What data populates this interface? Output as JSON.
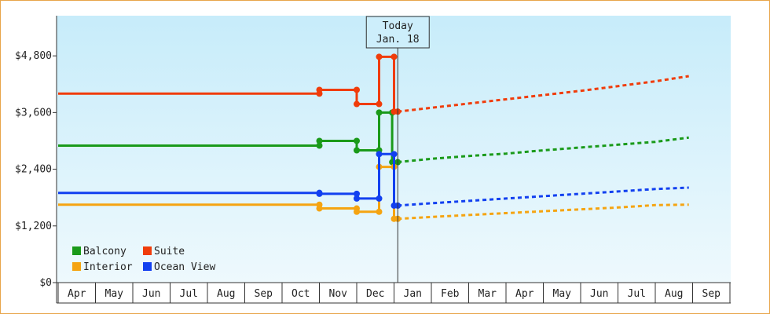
{
  "chart_data": {
    "type": "line",
    "today_label": [
      "Today",
      "Jan. 18"
    ],
    "y_ticks": [
      {
        "value": 0,
        "label": "$0"
      },
      {
        "value": 1200,
        "label": "$1,200"
      },
      {
        "value": 2400,
        "label": "$2,400"
      },
      {
        "value": 3600,
        "label": "$3,600"
      },
      {
        "value": 4800,
        "label": "$4,800"
      }
    ],
    "ylim": [
      0,
      5650
    ],
    "months": [
      "Apr",
      "May",
      "Jun",
      "Jul",
      "Aug",
      "Sep",
      "Oct",
      "Nov",
      "Dec",
      "Jan",
      "Feb",
      "Mar",
      "Apr",
      "May",
      "Jun",
      "Jul",
      "Aug",
      "Sep"
    ],
    "legend_position": "bottom-left",
    "series": [
      {
        "name": "Balcony",
        "color": "#1a9a1a",
        "history": [
          [
            0.0,
            2900
          ],
          [
            7.0,
            2900
          ],
          [
            7.0,
            3000
          ],
          [
            8.0,
            3000
          ],
          [
            8.0,
            2800
          ],
          [
            8.6,
            2800
          ],
          [
            8.6,
            3600
          ],
          [
            8.95,
            3600
          ],
          [
            8.95,
            2550
          ],
          [
            9.1,
            2550
          ]
        ],
        "forecast": [
          [
            9.1,
            2550
          ],
          [
            10.0,
            2620
          ],
          [
            11.0,
            2680
          ],
          [
            12.0,
            2730
          ],
          [
            13.0,
            2800
          ],
          [
            14.0,
            2860
          ],
          [
            15.0,
            2920
          ],
          [
            16.0,
            2980
          ],
          [
            16.9,
            3070
          ]
        ]
      },
      {
        "name": "Suite",
        "color": "#f03c0a",
        "history": [
          [
            0.0,
            4000
          ],
          [
            7.0,
            4000
          ],
          [
            7.0,
            4080
          ],
          [
            8.0,
            4080
          ],
          [
            8.0,
            3780
          ],
          [
            8.6,
            3780
          ],
          [
            8.6,
            4780
          ],
          [
            9.0,
            4780
          ],
          [
            9.0,
            3620
          ],
          [
            9.1,
            3620
          ]
        ],
        "forecast": [
          [
            9.1,
            3620
          ],
          [
            10.0,
            3700
          ],
          [
            11.0,
            3790
          ],
          [
            12.0,
            3880
          ],
          [
            13.0,
            3970
          ],
          [
            14.0,
            4060
          ],
          [
            15.0,
            4160
          ],
          [
            16.0,
            4260
          ],
          [
            16.9,
            4370
          ]
        ]
      },
      {
        "name": "Interior",
        "color": "#f5a411",
        "history": [
          [
            0.0,
            1650
          ],
          [
            7.0,
            1650
          ],
          [
            7.0,
            1570
          ],
          [
            8.0,
            1570
          ],
          [
            8.0,
            1500
          ],
          [
            8.6,
            1500
          ],
          [
            8.6,
            2450
          ],
          [
            9.0,
            2450
          ],
          [
            9.0,
            1350
          ],
          [
            9.1,
            1350
          ]
        ],
        "forecast": [
          [
            9.1,
            1350
          ],
          [
            10.0,
            1390
          ],
          [
            11.0,
            1430
          ],
          [
            12.0,
            1470
          ],
          [
            13.0,
            1510
          ],
          [
            14.0,
            1550
          ],
          [
            15.0,
            1590
          ],
          [
            16.0,
            1640
          ],
          [
            16.9,
            1650
          ]
        ]
      },
      {
        "name": "Ocean View",
        "color": "#1240f0",
        "history": [
          [
            0.0,
            1900
          ],
          [
            7.0,
            1900
          ],
          [
            7.0,
            1880
          ],
          [
            8.0,
            1880
          ],
          [
            8.0,
            1780
          ],
          [
            8.6,
            1780
          ],
          [
            8.6,
            2720
          ],
          [
            9.0,
            2720
          ],
          [
            9.0,
            1630
          ],
          [
            9.1,
            1630
          ]
        ],
        "forecast": [
          [
            9.1,
            1630
          ],
          [
            10.0,
            1680
          ],
          [
            11.0,
            1730
          ],
          [
            12.0,
            1780
          ],
          [
            13.0,
            1830
          ],
          [
            14.0,
            1880
          ],
          [
            15.0,
            1930
          ],
          [
            16.0,
            1980
          ],
          [
            16.9,
            2010
          ]
        ]
      }
    ]
  }
}
